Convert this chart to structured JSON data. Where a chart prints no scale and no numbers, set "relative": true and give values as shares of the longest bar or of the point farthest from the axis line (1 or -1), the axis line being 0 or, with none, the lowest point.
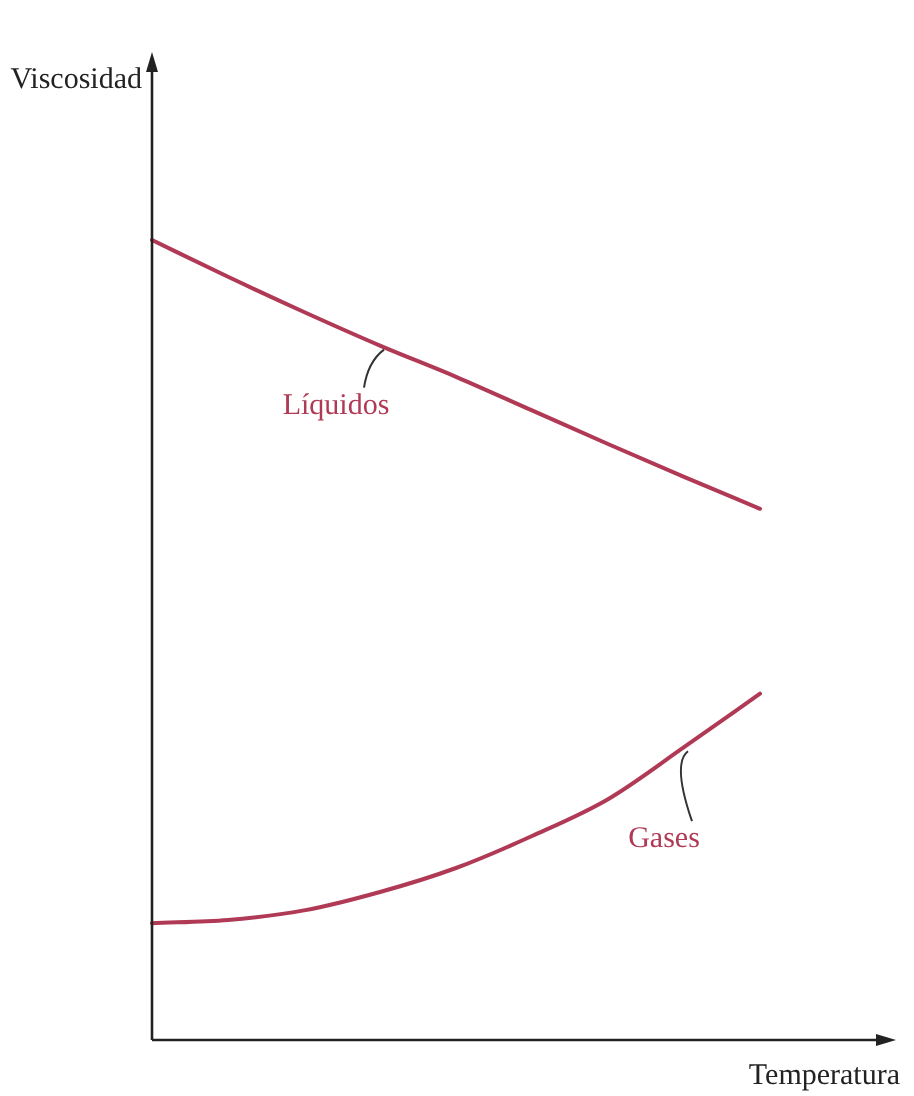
{
  "chart_data": {
    "type": "line",
    "relative": true,
    "xlabel": "Temperatura",
    "ylabel": "Viscosidad",
    "categories": [
      null,
      null,
      null,
      null,
      null,
      null,
      null,
      null,
      null
    ],
    "series": [
      {
        "name": "Líquidos",
        "color": "#b03a55",
        "values": [
          1,
          0.954,
          0.91,
          0.868,
          0.829,
          0.787,
          0.745,
          0.704,
          0.664
        ]
      },
      {
        "name": "Gases",
        "color": "#b03a55",
        "values": [
          0.146,
          0.15,
          0.162,
          0.185,
          0.215,
          0.255,
          0.301,
          0.366,
          0.433
        ]
      }
    ]
  }
}
